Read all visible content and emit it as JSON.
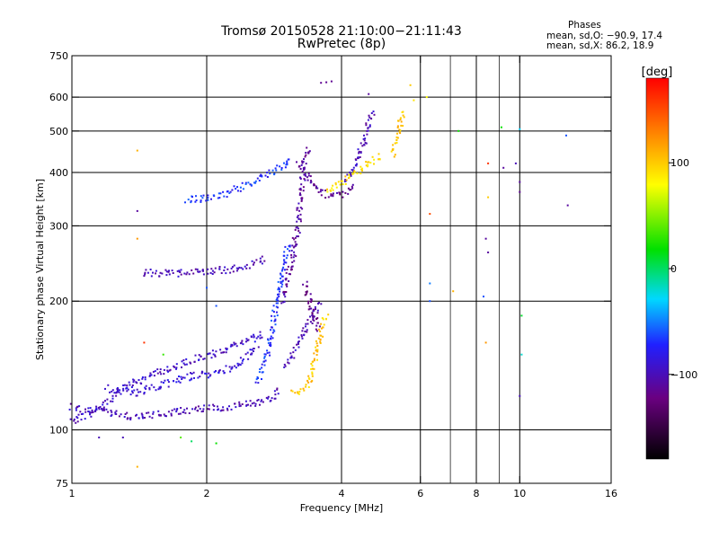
{
  "chart_data": {
    "type": "scatter",
    "title": "Tromsø 20150528 21:10:00−21:11:43",
    "subtitle": "RwPretec (8p)",
    "xlabel": "Frequency [MHz]",
    "ylabel": "Stationary phase Virtual Height [km]",
    "x_scale": "log",
    "y_scale": "log",
    "xlim": [
      1,
      16
    ],
    "ylim": [
      75,
      750
    ],
    "x_ticks": [
      1,
      2,
      4,
      6,
      8,
      10,
      16
    ],
    "x_tick_labels": [
      "1",
      "2",
      "4",
      "6",
      "8",
      "10",
      "16"
    ],
    "x_gridlines": [
      2,
      4,
      6,
      8,
      10
    ],
    "x_minor_lines": [
      7,
      9
    ],
    "y_ticks": [
      75,
      100,
      200,
      300,
      400,
      500,
      600,
      750
    ],
    "y_tick_labels": [
      "75",
      "100",
      "200",
      "300",
      "400",
      "500",
      "600",
      "750"
    ],
    "y_gridlines": [
      100,
      200,
      300,
      400,
      500,
      600
    ],
    "grid": true,
    "colorbar": {
      "label": "[deg]",
      "range": [
        -180,
        180
      ],
      "ticks": [
        100,
        0,
        -100
      ],
      "tick_labels": [
        "100",
        "0",
        "−100"
      ],
      "palette": [
        "#000000",
        "#6a0080",
        "#2020ff",
        "#00d8ff",
        "#00e000",
        "#ffff00",
        "#ff8000",
        "#ff0000"
      ]
    },
    "stats": {
      "title": "Phases",
      "o_mode": "mean, sd,O:  −90.9, 17.4",
      "x_mode": "mean, sd,X:  86.2, 18.9"
    },
    "traces": [
      {
        "x": [
          1.0,
          1.4,
          1.8,
          2.2,
          2.5,
          2.7,
          2.8,
          2.9
        ],
        "y": [
          113,
          107,
          111,
          113,
          115,
          117,
          119,
          125
        ],
        "phase": -100
      },
      {
        "x": [
          1.0,
          1.15,
          1.3,
          1.5,
          1.7,
          1.9,
          2.1,
          2.4,
          2.7
        ],
        "y": [
          104,
          112,
          126,
          134,
          140,
          147,
          151,
          160,
          168
        ],
        "phase": -95
      },
      {
        "x": [
          1.2,
          1.4,
          1.6,
          1.8,
          2.0,
          2.2,
          2.4,
          2.6
        ],
        "y": [
          125,
          122,
          128,
          133,
          135,
          138,
          145,
          160
        ],
        "phase": -90
      },
      {
        "x": [
          1.45,
          1.7,
          2.0,
          2.3,
          2.55,
          2.7
        ],
        "y": [
          233,
          232,
          234,
          238,
          245,
          252
        ],
        "phase": -100
      },
      {
        "x": [
          2.6,
          2.75,
          2.85,
          2.95,
          3.05
        ],
        "y": [
          130,
          155,
          190,
          230,
          275
        ],
        "phase": -70
      },
      {
        "x": [
          2.95,
          3.1,
          3.2,
          3.25,
          3.3,
          3.4
        ],
        "y": [
          200,
          250,
          300,
          350,
          420,
          460
        ],
        "phase": -110
      },
      {
        "x": [
          3.2,
          3.35,
          3.5,
          3.7,
          3.9,
          4.1,
          4.3
        ],
        "y": [
          420,
          390,
          370,
          355,
          352,
          360,
          370
        ],
        "phase": -115
      },
      {
        "x": [
          3.3,
          3.45,
          3.55
        ],
        "y": [
          220,
          190,
          170
        ],
        "phase": -120
      },
      {
        "x": [
          3.0,
          3.2,
          3.4,
          3.6
        ],
        "y": [
          140,
          160,
          180,
          200
        ],
        "phase": -100
      },
      {
        "x": [
          4.1,
          4.3,
          4.5,
          4.6,
          4.7
        ],
        "y": [
          380,
          420,
          470,
          520,
          560
        ],
        "phase": -100
      },
      {
        "x": [
          3.1,
          3.3,
          3.4,
          3.5,
          3.6,
          3.7
        ],
        "y": [
          122,
          125,
          130,
          150,
          170,
          185
        ],
        "phase": 100
      },
      {
        "x": [
          3.7,
          3.85,
          4.05,
          4.3,
          4.6,
          4.9
        ],
        "y": [
          360,
          370,
          380,
          400,
          420,
          440
        ],
        "phase": 95
      },
      {
        "x": [
          5.2,
          5.35,
          5.5
        ],
        "y": [
          440,
          500,
          560
        ],
        "phase": 100
      },
      {
        "x": [
          1.8,
          2.1,
          2.4,
          2.8,
          3.1
        ],
        "y": [
          345,
          350,
          370,
          400,
          430
        ],
        "phase": -70
      }
    ],
    "points": [
      {
        "x": 3.7,
        "y": 650,
        "phase": -115
      },
      {
        "x": 3.6,
        "y": 648,
        "phase": -115
      },
      {
        "x": 3.8,
        "y": 653,
        "phase": -115
      },
      {
        "x": 4.6,
        "y": 610,
        "phase": -110
      },
      {
        "x": 5.7,
        "y": 640,
        "phase": 100
      },
      {
        "x": 5.8,
        "y": 590,
        "phase": 90
      },
      {
        "x": 6.2,
        "y": 600,
        "phase": 80
      },
      {
        "x": 1.4,
        "y": 450,
        "phase": 110
      },
      {
        "x": 1.4,
        "y": 325,
        "phase": -110
      },
      {
        "x": 1.4,
        "y": 280,
        "phase": 120
      },
      {
        "x": 1.45,
        "y": 160,
        "phase": 160
      },
      {
        "x": 1.6,
        "y": 150,
        "phase": 30
      },
      {
        "x": 1.4,
        "y": 82,
        "phase": 110
      },
      {
        "x": 1.15,
        "y": 96,
        "phase": -100
      },
      {
        "x": 1.3,
        "y": 96,
        "phase": -100
      },
      {
        "x": 1.75,
        "y": 96,
        "phase": 40
      },
      {
        "x": 1.85,
        "y": 94,
        "phase": 0
      },
      {
        "x": 2.1,
        "y": 93,
        "phase": 20
      },
      {
        "x": 2.0,
        "y": 215,
        "phase": -60
      },
      {
        "x": 2.1,
        "y": 195,
        "phase": -60
      },
      {
        "x": 6.3,
        "y": 220,
        "phase": -50
      },
      {
        "x": 6.3,
        "y": 200,
        "phase": -60
      },
      {
        "x": 6.3,
        "y": 320,
        "phase": 150
      },
      {
        "x": 7.1,
        "y": 211,
        "phase": 110
      },
      {
        "x": 7.3,
        "y": 500,
        "phase": 20
      },
      {
        "x": 8.5,
        "y": 420,
        "phase": 160
      },
      {
        "x": 8.5,
        "y": 350,
        "phase": 100
      },
      {
        "x": 8.4,
        "y": 280,
        "phase": -110
      },
      {
        "x": 8.5,
        "y": 260,
        "phase": -110
      },
      {
        "x": 8.3,
        "y": 205,
        "phase": -60
      },
      {
        "x": 8.4,
        "y": 160,
        "phase": 120
      },
      {
        "x": 9.1,
        "y": 510,
        "phase": 20
      },
      {
        "x": 9.2,
        "y": 410,
        "phase": -110
      },
      {
        "x": 10.0,
        "y": 505,
        "phase": -30
      },
      {
        "x": 10.0,
        "y": 380,
        "phase": -110
      },
      {
        "x": 10.0,
        "y": 360,
        "phase": -115
      },
      {
        "x": 9.8,
        "y": 420,
        "phase": -100
      },
      {
        "x": 10.1,
        "y": 185,
        "phase": 10
      },
      {
        "x": 10.1,
        "y": 150,
        "phase": -20
      },
      {
        "x": 10.0,
        "y": 120,
        "phase": -100
      },
      {
        "x": 12.7,
        "y": 488,
        "phase": -60
      },
      {
        "x": 12.8,
        "y": 335,
        "phase": -110
      }
    ]
  }
}
